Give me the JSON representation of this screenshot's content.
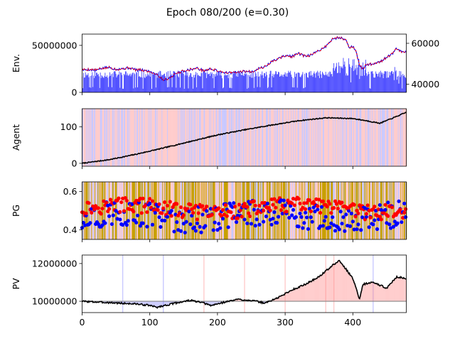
{
  "figure": {
    "title": "Epoch 080/200 (e=0.30)"
  },
  "colors": {
    "price": "#ff0000",
    "volume": "#0000ff",
    "agent_line": "#000000",
    "buy": "#0000ff",
    "sell": "#ff0000",
    "hold": "#c8a000",
    "pv_gain": "#ff8a8a",
    "pv_loss": "#8a8aff"
  },
  "chart_data": [
    {
      "type": "line",
      "panel": "env",
      "ylabel": "Env.",
      "x_range": [
        0,
        479
      ],
      "ylim_left": [
        0,
        62000000
      ],
      "yticks_left": [
        "0",
        "50000000"
      ],
      "ylim_right": [
        36000000,
        64500000
      ],
      "yticks_right": [
        "40000",
        "60000"
      ],
      "series": [
        {
          "axis": "right",
          "style": "line",
          "points": [
            [
              0,
              47000
            ],
            [
              10,
              47200
            ],
            [
              20,
              46800
            ],
            [
              30,
              47800
            ],
            [
              40,
              48200
            ],
            [
              50,
              47300
            ],
            [
              60,
              47600
            ],
            [
              70,
              48000
            ],
            [
              80,
              47000
            ],
            [
              90,
              46800
            ],
            [
              100,
              46200
            ],
            [
              110,
              45000
            ],
            [
              120,
              42000
            ],
            [
              130,
              43200
            ],
            [
              140,
              45500
            ],
            [
              150,
              46500
            ],
            [
              160,
              47200
            ],
            [
              170,
              47800
            ],
            [
              180,
              46500
            ],
            [
              190,
              47500
            ],
            [
              200,
              46500
            ],
            [
              210,
              45800
            ],
            [
              220,
              45500
            ],
            [
              230,
              45800
            ],
            [
              240,
              46300
            ],
            [
              250,
              46000
            ],
            [
              260,
              47600
            ],
            [
              270,
              48500
            ],
            [
              280,
              51000
            ],
            [
              290,
              52500
            ],
            [
              300,
              54000
            ],
            [
              310,
              53500
            ],
            [
              320,
              55000
            ],
            [
              330,
              53500
            ],
            [
              340,
              54500
            ],
            [
              350,
              56500
            ],
            [
              360,
              58500
            ],
            [
              370,
              62000
            ],
            [
              380,
              63000
            ],
            [
              390,
              61500
            ],
            [
              395,
              58000
            ],
            [
              400,
              58500
            ],
            [
              405,
              55500
            ],
            [
              410,
              49000
            ],
            [
              415,
              47500
            ],
            [
              420,
              49500
            ],
            [
              430,
              50000
            ],
            [
              440,
              51000
            ],
            [
              450,
              53000
            ],
            [
              460,
              55500
            ],
            [
              465,
              57500
            ],
            [
              470,
              56000
            ],
            [
              479,
              55500
            ]
          ]
        }
      ],
      "volume": {
        "axis": "left",
        "style": "bars",
        "values_by_index": "generated from base level ~18000000 with spikes up to ~38000000 near x=380-420"
      }
    },
    {
      "type": "line",
      "panel": "agent",
      "ylabel": "Agent",
      "x_range": [
        0,
        479
      ],
      "ylim": [
        -8,
        150
      ],
      "yticks": [
        "0",
        "100"
      ],
      "points": [
        [
          0,
          0
        ],
        [
          40,
          10
        ],
        [
          80,
          25
        ],
        [
          120,
          42
        ],
        [
          160,
          60
        ],
        [
          200,
          78
        ],
        [
          240,
          92
        ],
        [
          280,
          105
        ],
        [
          320,
          117
        ],
        [
          360,
          125
        ],
        [
          400,
          123
        ],
        [
          420,
          117
        ],
        [
          440,
          110
        ],
        [
          460,
          125
        ],
        [
          479,
          140
        ]
      ]
    },
    {
      "type": "scatter",
      "panel": "pg",
      "ylabel": "PG",
      "x_range": [
        0,
        479
      ],
      "ylim": [
        0.35,
        0.65
      ],
      "yticks": [
        "0.4",
        "0.6"
      ],
      "series": [
        {
          "name": "",
          "color": "red",
          "center": 0.51,
          "spread": 0.04
        },
        {
          "name": "",
          "color": "blue",
          "center": 0.47,
          "spread": 0.07
        }
      ]
    },
    {
      "type": "line",
      "panel": "pv",
      "ylabel": "PV",
      "x_range": [
        0,
        479
      ],
      "xticks": [
        "0",
        "100",
        "200",
        "300",
        "400"
      ],
      "ylim": [
        9400000,
        12450000
      ],
      "yticks": [
        "10000000",
        "12000000"
      ],
      "baseline": 10000000,
      "points": [
        [
          0,
          10000000
        ],
        [
          20,
          9960000
        ],
        [
          40,
          9930000
        ],
        [
          60,
          9890000
        ],
        [
          80,
          9860000
        ],
        [
          100,
          9780000
        ],
        [
          110,
          9680000
        ],
        [
          120,
          9760000
        ],
        [
          140,
          9920000
        ],
        [
          160,
          10050000
        ],
        [
          180,
          9900000
        ],
        [
          190,
          9770000
        ],
        [
          210,
          9950000
        ],
        [
          230,
          10100000
        ],
        [
          250,
          10050000
        ],
        [
          270,
          9900000
        ],
        [
          290,
          10200000
        ],
        [
          310,
          10600000
        ],
        [
          330,
          10900000
        ],
        [
          350,
          11300000
        ],
        [
          370,
          11900000
        ],
        [
          380,
          12150000
        ],
        [
          390,
          11700000
        ],
        [
          400,
          11200000
        ],
        [
          405,
          10700000
        ],
        [
          410,
          10100000
        ],
        [
          415,
          10900000
        ],
        [
          430,
          11000000
        ],
        [
          450,
          10700000
        ],
        [
          465,
          11300000
        ],
        [
          479,
          11200000
        ]
      ]
    }
  ]
}
